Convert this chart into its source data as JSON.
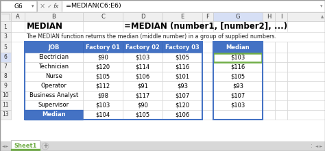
{
  "formula_bar_cell": "G6",
  "formula_bar_formula": "=MEDIAN(C6:E6)",
  "title_left": "MEDIAN",
  "title_right": "=MEDIAN (number1, [number2], ...)",
  "subtitle": "The MEDIAN function returns the median (middle number) in a group of supplied numbers.",
  "headers": [
    "JOB",
    "Factory 01",
    "Factory 02",
    "Factory 03",
    "Median"
  ],
  "rows": [
    [
      "Electrician",
      "$90",
      "$103",
      "$105",
      "$103"
    ],
    [
      "Technician",
      "$120",
      "$114",
      "$116",
      "$116"
    ],
    [
      "Nurse",
      "$105",
      "$106",
      "$101",
      "$105"
    ],
    [
      "Operator",
      "$112",
      "$91",
      "$93",
      "$93"
    ],
    [
      "Business Analyst",
      "$98",
      "$117",
      "$107",
      "$107"
    ],
    [
      "Supervisor",
      "$103",
      "$90",
      "$120",
      "$103"
    ]
  ],
  "footer_label": "Median",
  "footer_values": [
    "$104",
    "$105",
    "$106"
  ],
  "header_bg": "#4472C4",
  "header_fg": "#FFFFFF",
  "footer_bg": "#4472C4",
  "footer_fg": "#FFFFFF",
  "selected_cell_border": "#70AD47",
  "sheet_tab_color": "#70AD47",
  "sheet_tab_text": "Sheet1",
  "col_letters": [
    "A",
    "B",
    "C",
    "D",
    "E",
    "F",
    "G",
    "H",
    "I"
  ],
  "outer_bg": "#D4D4D4"
}
